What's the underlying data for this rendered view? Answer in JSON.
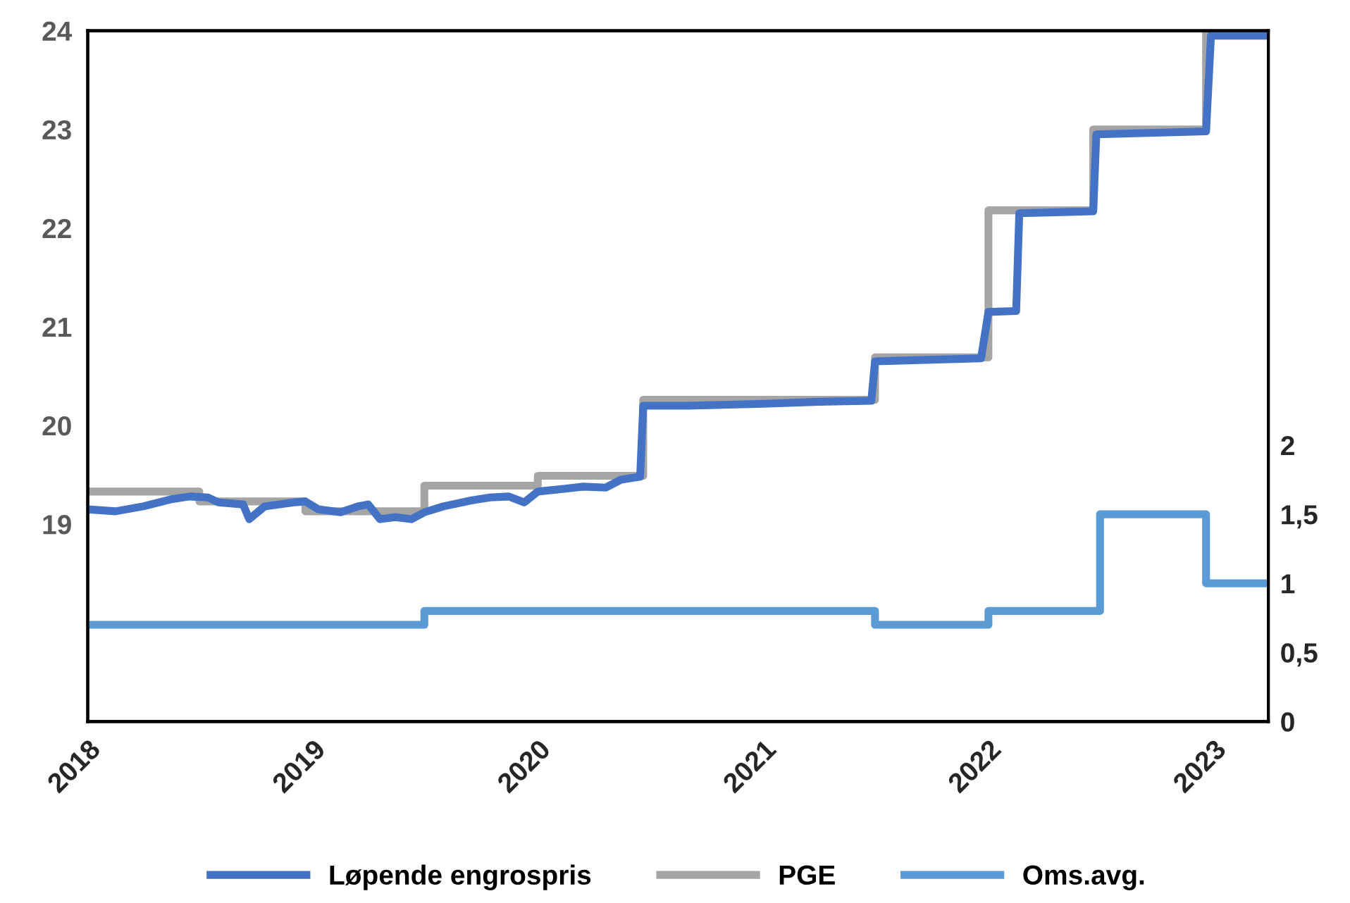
{
  "chart_data": {
    "type": "step",
    "legend": "bottom",
    "grid": false,
    "marker": "none",
    "line_style": "solid",
    "xlim": [
      "2018-01-01",
      "2023-03-31"
    ],
    "xticks": [
      "2018",
      "2019",
      "2020",
      "2021",
      "2022",
      "2023"
    ],
    "ylim": [
      17,
      24
    ],
    "yticks": [
      19,
      20,
      21,
      22,
      23,
      24
    ],
    "y2lim": [
      0,
      5
    ],
    "y2ticks": [
      0,
      {
        "value": 0.5,
        "label": "0,5"
      },
      1,
      {
        "value": 1.5,
        "label": "1,5"
      },
      2
    ],
    "series": [
      {
        "name": "Løpende engrospris",
        "color": "#4472c4",
        "type": "line",
        "x": [
          "2018-01-01",
          "2018-02-15",
          "2018-04-01",
          "2018-05-15",
          "2018-06-15",
          "2018-07-15",
          "2018-08-01",
          "2018-09-10",
          "2018-09-20",
          "2018-10-15",
          "2018-12-01",
          "2018-12-20",
          "2019-01-10",
          "2019-02-15",
          "2019-03-15",
          "2019-04-01",
          "2019-04-20",
          "2019-05-15",
          "2019-06-10",
          "2019-07-01",
          "2019-08-01",
          "2019-09-15",
          "2019-10-15",
          "2019-11-15",
          "2019-12-10",
          "2020-01-01",
          "2020-02-15",
          "2020-03-15",
          "2020-04-20",
          "2020-05-15",
          "2020-06-15",
          "2020-06-20",
          "2020-09-01",
          "2021-01-01",
          "2021-04-01",
          "2021-06-25",
          "2021-07-01",
          "2021-12-20",
          "2022-01-01",
          "2022-02-15",
          "2022-02-20",
          "2022-06-20",
          "2022-06-25",
          "2022-12-20",
          "2022-12-28",
          "2023-03-31"
        ],
        "values": [
          19.15,
          19.13,
          19.18,
          19.25,
          19.28,
          19.27,
          19.22,
          19.2,
          19.05,
          19.18,
          19.22,
          19.23,
          19.15,
          19.12,
          19.18,
          19.2,
          19.05,
          19.07,
          19.05,
          19.12,
          19.18,
          19.24,
          19.27,
          19.28,
          19.22,
          19.33,
          19.36,
          19.38,
          19.37,
          19.45,
          19.48,
          20.2,
          20.2,
          20.22,
          20.24,
          20.25,
          20.65,
          20.68,
          21.15,
          21.16,
          22.15,
          22.17,
          22.95,
          22.98,
          23.95,
          23.95
        ]
      },
      {
        "name": "PGE",
        "color": "#a5a5a5",
        "x": [
          "2018-01-01",
          "2018-07-01",
          "2018-12-20",
          "2019-07-01",
          "2020-01-01",
          "2020-06-20",
          "2021-07-01",
          "2022-01-01",
          "2022-06-20",
          "2022-12-20",
          "2023-03-31"
        ],
        "values": [
          19.33,
          19.23,
          19.13,
          19.39,
          19.49,
          20.26,
          20.69,
          22.18,
          23.0,
          24.0,
          24.0
        ]
      },
      {
        "name": "Oms.avg.",
        "color": "#5b9bd5",
        "axis": "y2",
        "x": [
          "2018-01-01",
          "2019-07-01",
          "2021-07-01",
          "2022-01-01",
          "2022-07-01",
          "2022-12-20",
          "2023-03-31"
        ],
        "values": [
          0.7,
          0.8,
          0.7,
          0.8,
          1.5,
          1.0,
          1.0
        ]
      }
    ]
  }
}
